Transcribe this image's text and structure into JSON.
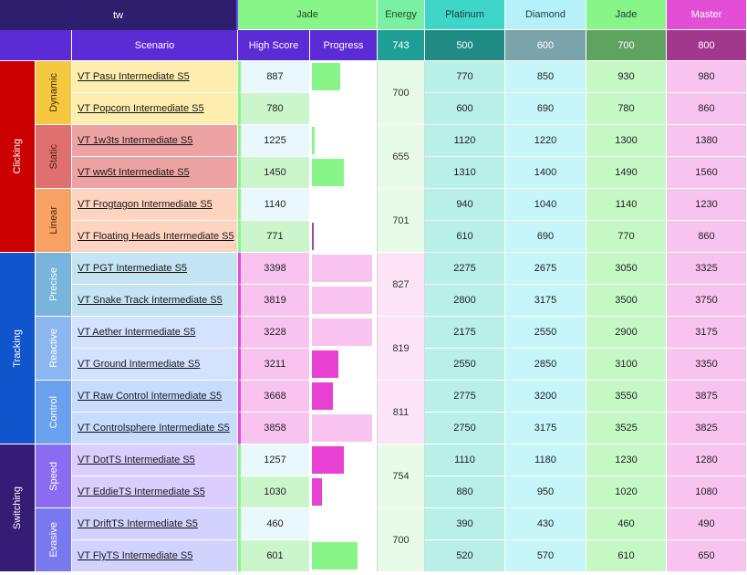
{
  "header": {
    "player": "tw",
    "current_rank": "Jade",
    "energy_label": "Energy",
    "energy_total": "743",
    "columns": {
      "scenario": "Scenario",
      "high_score": "High Score",
      "progress": "Progress"
    },
    "ranks": [
      {
        "name": "Platinum",
        "energy": "500"
      },
      {
        "name": "Diamond",
        "energy": "600"
      },
      {
        "name": "Jade",
        "energy": "700"
      },
      {
        "name": "Master",
        "energy": "800"
      }
    ]
  },
  "categories": [
    {
      "name": "Clicking",
      "color": "#cc0000"
    },
    {
      "name": "Tracking",
      "color": "#1155cc"
    },
    {
      "name": "Switching",
      "color": "#351c75"
    }
  ],
  "subcategories": [
    {
      "name": "Dynamic",
      "energy": "700"
    },
    {
      "name": "Static",
      "energy": "655"
    },
    {
      "name": "Linear",
      "energy": "701"
    },
    {
      "name": "Precise",
      "energy": "827"
    },
    {
      "name": "Reactive",
      "energy": "819"
    },
    {
      "name": "Control",
      "energy": "811"
    },
    {
      "name": "Speed",
      "energy": "754"
    },
    {
      "name": "Evasive",
      "energy": "700"
    }
  ],
  "rows": [
    {
      "scenario": "VT Pasu Intermediate S5",
      "high_score": "887",
      "progress": 0.45,
      "thresholds": [
        "770",
        "850",
        "930",
        "980"
      ]
    },
    {
      "scenario": "VT Popcorn Intermediate S5",
      "high_score": "780",
      "progress": 0,
      "thresholds": [
        "600",
        "690",
        "780",
        "860"
      ]
    },
    {
      "scenario": "VT 1w3ts Intermediate S5",
      "high_score": "1225",
      "progress": 0.05,
      "thresholds": [
        "1120",
        "1220",
        "1300",
        "1380"
      ]
    },
    {
      "scenario": "VT ww5t Intermediate S5",
      "high_score": "1450",
      "progress": 0.5,
      "thresholds": [
        "1310",
        "1400",
        "1490",
        "1560"
      ]
    },
    {
      "scenario": "VT Frogtagon Intermediate S5",
      "high_score": "1140",
      "progress": 0,
      "thresholds": [
        "940",
        "1040",
        "1140",
        "1230"
      ]
    },
    {
      "scenario": "VT Floating Heads Intermediate S5",
      "high_score": "771",
      "progress": 0.02,
      "thresholds": [
        "610",
        "690",
        "770",
        "860"
      ]
    },
    {
      "scenario": "VT PGT Intermediate S5",
      "high_score": "3398",
      "progress": 0.95,
      "thresholds": [
        "2275",
        "2675",
        "3050",
        "3325"
      ]
    },
    {
      "scenario": "VT Snake Track Intermediate S5",
      "high_score": "3819",
      "progress": 0.95,
      "thresholds": [
        "2800",
        "3175",
        "3500",
        "3750"
      ]
    },
    {
      "scenario": "VT Aether Intermediate S5",
      "high_score": "3228",
      "progress": 0.95,
      "thresholds": [
        "2175",
        "2550",
        "2900",
        "3175"
      ]
    },
    {
      "scenario": "VT Ground Intermediate S5",
      "high_score": "3211",
      "progress": 0.42,
      "thresholds": [
        "2550",
        "2850",
        "3100",
        "3350"
      ]
    },
    {
      "scenario": "VT Raw Control Intermediate S5",
      "high_score": "3668",
      "progress": 0.33,
      "thresholds": [
        "2775",
        "3200",
        "3550",
        "3875"
      ]
    },
    {
      "scenario": "VT Controlsphere Intermediate S5",
      "high_score": "3858",
      "progress": 0.95,
      "thresholds": [
        "2750",
        "3175",
        "3525",
        "3825"
      ]
    },
    {
      "scenario": "VT DotTS Intermediate S5",
      "high_score": "1257",
      "progress": 0.5,
      "thresholds": [
        "1110",
        "1180",
        "1230",
        "1280"
      ]
    },
    {
      "scenario": "VT EddieTS Intermediate S5",
      "high_score": "1030",
      "progress": 0.16,
      "thresholds": [
        "880",
        "950",
        "1020",
        "1080"
      ]
    },
    {
      "scenario": "VT DriftTS Intermediate S5",
      "high_score": "460",
      "progress": 0,
      "thresholds": [
        "390",
        "430",
        "460",
        "490"
      ]
    },
    {
      "scenario": "VT FlyTS Intermediate S5",
      "high_score": "601",
      "progress": 0.72,
      "thresholds": [
        "520",
        "570",
        "610",
        "650"
      ]
    }
  ],
  "colors": {
    "header_purple": "#5b2bd6",
    "title_dark": "#2d1f6e",
    "jade_green": "#87f587",
    "platinum": "#3dd6c8",
    "diamond": "#b6f0f8",
    "master": "#e24fd6"
  }
}
